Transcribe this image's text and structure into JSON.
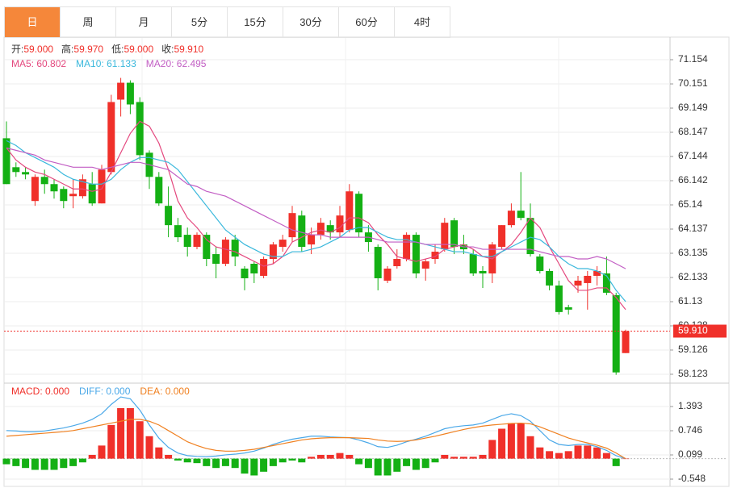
{
  "tabs": [
    "日",
    "周",
    "月",
    "5分",
    "15分",
    "30分",
    "60分",
    "4时"
  ],
  "chart_data": [
    {
      "type": "candlestick",
      "info": [
        {
          "label": "开:",
          "value": "59.000"
        },
        {
          "label": "高:",
          "value": "59.970"
        },
        {
          "label": "低:",
          "value": "59.000"
        },
        {
          "label": "收:",
          "value": "59.910"
        }
      ],
      "ylim": [
        57.755,
        72.09
      ],
      "yticks": [
        71.154,
        70.151,
        69.149,
        68.147,
        67.144,
        66.142,
        65.14,
        64.137,
        63.135,
        62.133,
        61.13,
        60.128,
        59.126,
        58.123
      ],
      "up_color": "#f0302a",
      "down_color": "#14b014",
      "open": [
        67.9,
        66.7,
        66.5,
        65.3,
        66.3,
        66.0,
        65.8,
        65.5,
        65.5,
        66.0,
        65.2,
        66.5,
        69.5,
        70.2,
        69.4,
        67.3,
        66.3,
        65.1,
        64.3,
        63.9,
        63.4,
        63.9,
        63.1,
        62.7,
        63.7,
        62.5,
        62.7,
        62.2,
        62.9,
        63.4,
        63.8,
        64.7,
        63.5,
        63.9,
        64.3,
        64.0,
        64.1,
        65.6,
        64.0,
        63.4,
        62.0,
        62.6,
        62.9,
        63.9,
        62.5,
        62.9,
        63.3,
        64.5,
        63.5,
        63.1,
        62.4,
        62.3,
        63.4,
        64.3,
        64.9,
        64.6,
        63.0,
        62.4,
        61.8,
        60.9,
        61.8,
        61.9,
        62.2,
        62.3,
        61.4,
        59.0
      ],
      "high": [
        68.6,
        66.9,
        66.7,
        66.4,
        66.6,
        66.2,
        65.9,
        66.2,
        66.4,
        66.5,
        66.8,
        69.7,
        70.4,
        70.3,
        69.6,
        67.4,
        66.5,
        65.9,
        64.6,
        64.2,
        64.0,
        64.0,
        63.4,
        63.8,
        63.9,
        62.6,
        62.8,
        63.0,
        63.6,
        63.9,
        65.1,
        64.9,
        64.2,
        64.6,
        64.5,
        65.1,
        66.0,
        65.7,
        64.3,
        63.5,
        62.6,
        63.3,
        64.0,
        64.0,
        62.9,
        63.5,
        64.6,
        64.6,
        63.9,
        63.3,
        62.6,
        63.6,
        64.3,
        65.2,
        66.5,
        65.2,
        63.1,
        62.5,
        62.0,
        61.0,
        62.2,
        62.4,
        62.6,
        63.0,
        61.5,
        59.97
      ],
      "low": [
        66.0,
        66.3,
        66.2,
        65.1,
        65.6,
        65.4,
        65.0,
        65.0,
        65.4,
        65.1,
        65.2,
        66.4,
        68.8,
        68.9,
        67.0,
        65.8,
        65.1,
        63.8,
        63.6,
        63.0,
        63.3,
        62.6,
        62.1,
        62.6,
        62.6,
        61.6,
        61.9,
        62.1,
        62.7,
        63.2,
        63.6,
        63.2,
        63.1,
        63.7,
        63.7,
        63.8,
        64.0,
        63.8,
        63.2,
        61.6,
        61.9,
        62.5,
        62.8,
        62.1,
        62.0,
        62.7,
        63.2,
        63.1,
        63.1,
        62.2,
        61.7,
        61.9,
        63.3,
        64.2,
        64.5,
        63.0,
        62.3,
        61.6,
        60.6,
        60.6,
        61.5,
        60.8,
        61.8,
        61.4,
        58.1,
        59.0
      ],
      "close": [
        66.0,
        66.5,
        66.4,
        66.3,
        66.0,
        65.7,
        65.3,
        65.6,
        66.2,
        65.2,
        66.6,
        69.4,
        70.2,
        69.3,
        67.2,
        66.3,
        65.2,
        64.3,
        63.8,
        63.4,
        63.9,
        62.9,
        62.7,
        63.7,
        63.0,
        62.1,
        62.3,
        62.9,
        63.5,
        63.7,
        64.8,
        63.4,
        63.9,
        64.4,
        64.0,
        64.7,
        65.7,
        64.0,
        63.6,
        62.1,
        62.5,
        62.9,
        63.9,
        62.3,
        62.8,
        63.2,
        64.4,
        63.4,
        63.3,
        62.3,
        62.3,
        63.5,
        64.3,
        64.9,
        64.6,
        63.1,
        62.4,
        61.8,
        60.7,
        60.8,
        62.0,
        62.2,
        62.4,
        61.5,
        58.2,
        59.91
      ],
      "last_price": {
        "value": 59.91,
        "label": "59.910"
      },
      "series": [
        {
          "name": "MA5: 60.802",
          "color": "#e4487e",
          "values": [
            67.5,
            67.0,
            66.7,
            66.5,
            66.4,
            66.2,
            66.0,
            65.8,
            65.8,
            65.7,
            65.8,
            66.5,
            67.3,
            68.1,
            68.6,
            68.4,
            67.7,
            66.6,
            65.3,
            64.6,
            64.2,
            63.7,
            63.4,
            63.3,
            63.2,
            63.0,
            62.8,
            62.6,
            62.7,
            63.0,
            63.6,
            63.8,
            64.0,
            64.1,
            64.0,
            64.2,
            64.6,
            64.6,
            64.4,
            63.9,
            63.5,
            63.0,
            62.9,
            62.8,
            62.9,
            63.0,
            63.3,
            63.4,
            63.5,
            63.3,
            63.0,
            62.9,
            63.2,
            63.5,
            64.0,
            64.6,
            64.2,
            63.4,
            62.7,
            62.0,
            61.6,
            61.6,
            61.7,
            61.7,
            61.3,
            60.802
          ]
        },
        {
          "name": "MA10: 61.133",
          "color": "#3ab8dc",
          "values": [
            67.8,
            67.6,
            67.3,
            67.1,
            66.9,
            66.7,
            66.4,
            66.2,
            66.1,
            66.0,
            66.0,
            66.2,
            66.6,
            66.9,
            67.1,
            67.1,
            67.0,
            66.9,
            66.6,
            66.1,
            65.6,
            65.1,
            64.6,
            64.1,
            63.8,
            63.5,
            63.3,
            63.1,
            63.0,
            63.0,
            63.2,
            63.2,
            63.3,
            63.4,
            63.6,
            63.8,
            64.1,
            64.2,
            64.2,
            64.0,
            63.8,
            63.7,
            63.7,
            63.6,
            63.5,
            63.4,
            63.3,
            63.2,
            63.2,
            63.1,
            63.0,
            63.0,
            63.2,
            63.4,
            63.6,
            63.8,
            63.7,
            63.4,
            63.0,
            62.7,
            62.5,
            62.5,
            62.4,
            62.2,
            61.6,
            61.133
          ]
        },
        {
          "name": "MA20: 62.495",
          "color": "#c25ec4",
          "values": [
            67.5,
            67.4,
            67.3,
            67.2,
            67.0,
            66.9,
            66.8,
            66.7,
            66.7,
            66.7,
            66.6,
            66.7,
            66.8,
            66.9,
            66.9,
            66.8,
            66.7,
            66.6,
            66.3,
            66.0,
            65.9,
            65.7,
            65.6,
            65.5,
            65.3,
            65.1,
            64.9,
            64.7,
            64.5,
            64.3,
            64.1,
            64.0,
            63.9,
            63.9,
            63.8,
            63.8,
            63.8,
            63.8,
            63.8,
            63.7,
            63.6,
            63.6,
            63.6,
            63.6,
            63.5,
            63.5,
            63.5,
            63.5,
            63.4,
            63.4,
            63.3,
            63.3,
            63.3,
            63.3,
            63.3,
            63.3,
            63.2,
            63.1,
            63.0,
            63.0,
            62.9,
            62.9,
            63.0,
            62.9,
            62.7,
            62.495
          ]
        }
      ]
    },
    {
      "type": "macd",
      "ylim": [
        -0.785,
        1.997
      ],
      "yticks": [
        1.393,
        0.746,
        0.099,
        -0.548
      ],
      "up_color": "#f0302a",
      "down_color": "#14b014",
      "histogram": {
        "name": "MACD: 0.000",
        "color": "#f0302a",
        "values": [
          -0.15,
          -0.2,
          -0.25,
          -0.3,
          -0.3,
          -0.3,
          -0.25,
          -0.2,
          -0.1,
          0.1,
          0.35,
          0.9,
          1.35,
          1.35,
          1.0,
          0.6,
          0.3,
          0.1,
          -0.05,
          -0.1,
          -0.12,
          -0.2,
          -0.25,
          -0.2,
          -0.25,
          -0.4,
          -0.45,
          -0.35,
          -0.2,
          -0.1,
          -0.05,
          -0.1,
          0.05,
          0.1,
          0.1,
          0.15,
          0.1,
          -0.15,
          -0.25,
          -0.45,
          -0.45,
          -0.35,
          -0.2,
          -0.3,
          -0.25,
          -0.1,
          0.1,
          0.05,
          0.05,
          0.05,
          0.1,
          0.5,
          0.8,
          0.95,
          0.95,
          0.6,
          0.3,
          0.2,
          0.15,
          0.2,
          0.35,
          0.35,
          0.3,
          0.15,
          -0.2,
          0.0
        ]
      },
      "series": [
        {
          "name": "DIFF: 0.000",
          "color": "#4aa8e8",
          "values": [
            0.75,
            0.74,
            0.72,
            0.72,
            0.74,
            0.78,
            0.82,
            0.88,
            0.95,
            1.05,
            1.2,
            1.45,
            1.65,
            1.6,
            1.3,
            0.9,
            0.55,
            0.3,
            0.15,
            0.08,
            0.06,
            0.05,
            0.07,
            0.1,
            0.12,
            0.15,
            0.2,
            0.28,
            0.38,
            0.46,
            0.52,
            0.56,
            0.6,
            0.6,
            0.58,
            0.57,
            0.56,
            0.5,
            0.42,
            0.32,
            0.3,
            0.36,
            0.45,
            0.52,
            0.6,
            0.7,
            0.8,
            0.85,
            0.88,
            0.9,
            0.95,
            1.05,
            1.15,
            1.2,
            1.15,
            1.0,
            0.75,
            0.5,
            0.38,
            0.35,
            0.38,
            0.38,
            0.32,
            0.22,
            0.08,
            0.0
          ]
        },
        {
          "name": "DEA: 0.000",
          "color": "#f08020",
          "values": [
            0.6,
            0.62,
            0.64,
            0.66,
            0.68,
            0.7,
            0.72,
            0.75,
            0.8,
            0.85,
            0.9,
            0.95,
            1.0,
            1.05,
            1.05,
            1.0,
            0.9,
            0.75,
            0.6,
            0.45,
            0.35,
            0.27,
            0.22,
            0.2,
            0.2,
            0.22,
            0.25,
            0.3,
            0.35,
            0.4,
            0.45,
            0.5,
            0.53,
            0.55,
            0.56,
            0.56,
            0.56,
            0.55,
            0.54,
            0.5,
            0.47,
            0.46,
            0.47,
            0.5,
            0.55,
            0.6,
            0.66,
            0.72,
            0.78,
            0.83,
            0.87,
            0.9,
            0.92,
            0.94,
            0.95,
            0.93,
            0.85,
            0.75,
            0.65,
            0.55,
            0.48,
            0.42,
            0.36,
            0.28,
            0.15,
            0.0
          ]
        }
      ]
    }
  ]
}
